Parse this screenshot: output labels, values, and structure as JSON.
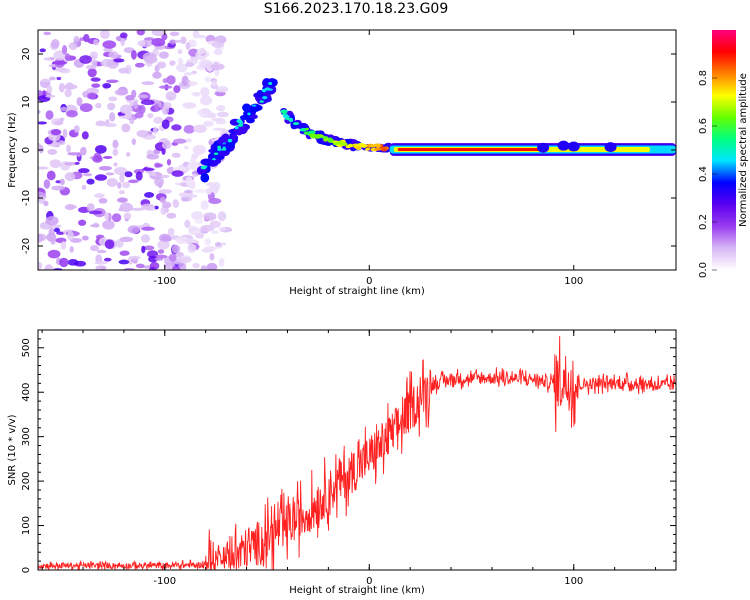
{
  "title": "S166.2023.170.18.23.G09",
  "chart_data": [
    {
      "type": "heatmap",
      "xlabel": "Height of straight line (km)",
      "ylabel": "Frequency (Hz)",
      "xlim": [
        -162,
        150
      ],
      "ylim": [
        -25,
        25
      ],
      "xticks": [
        -100,
        0,
        100
      ],
      "yticks": [
        -20,
        -10,
        0,
        10,
        20
      ],
      "colorbar": {
        "label": "Normalized spectral amplitude",
        "range": [
          0.0,
          1.0
        ],
        "ticks": [
          0.0,
          0.2,
          0.4,
          0.6,
          0.8
        ],
        "colormap": [
          "#ffffff",
          "#d8b8f4",
          "#9a3cf0",
          "#5a00f0",
          "#0000ff",
          "#00e5ff",
          "#00ff80",
          "#66ff00",
          "#ffff00",
          "#ff8000",
          "#ff0000",
          "#ff0080"
        ]
      },
      "features": [
        {
          "name": "noise",
          "x": [
            -162,
            -78
          ],
          "y": [
            -25,
            25
          ],
          "amplitude": 0.15
        },
        {
          "name": "rising-track",
          "x": [
            -82,
            -47
          ],
          "y": [
            -5,
            14
          ],
          "amplitude": 0.35
        },
        {
          "name": "falling-track",
          "x": [
            -42,
            10
          ],
          "y": [
            8,
            0
          ],
          "amplitude": 0.5
        },
        {
          "name": "steady-track",
          "x": [
            10,
            150
          ],
          "y": [
            0,
            0
          ],
          "amplitude": 0.9
        }
      ],
      "grid": false
    },
    {
      "type": "line",
      "xlabel": "Height of straight line (km)",
      "ylabel": "SNR (10 * v/v)",
      "xlim": [
        -162,
        150
      ],
      "ylim": [
        0,
        540
      ],
      "xticks": [
        -100,
        0,
        100
      ],
      "yticks": [
        0,
        100,
        200,
        300,
        400,
        500
      ],
      "color": "#ff2020",
      "envelope": {
        "x": [
          -162,
          -100,
          -80,
          -70,
          -60,
          -50,
          -40,
          -30,
          -20,
          -10,
          0,
          10,
          20,
          30,
          40,
          60,
          80,
          90,
          95,
          100,
          105,
          110,
          130,
          150
        ],
        "y": [
          10,
          10,
          12,
          20,
          45,
          75,
          100,
          130,
          175,
          215,
          255,
          300,
          360,
          415,
          430,
          432,
          430,
          420,
          430,
          420,
          418,
          420,
          420,
          415
        ]
      },
      "noise": [
        {
          "x": [
            -162,
            -80
          ],
          "amplitude": 12
        },
        {
          "x": [
            -80,
            30
          ],
          "amplitude": 90
        },
        {
          "x": [
            30,
            150
          ],
          "amplitude": 25
        },
        {
          "x": [
            90,
            102
          ],
          "amplitude": 120
        }
      ],
      "grid": false
    }
  ]
}
